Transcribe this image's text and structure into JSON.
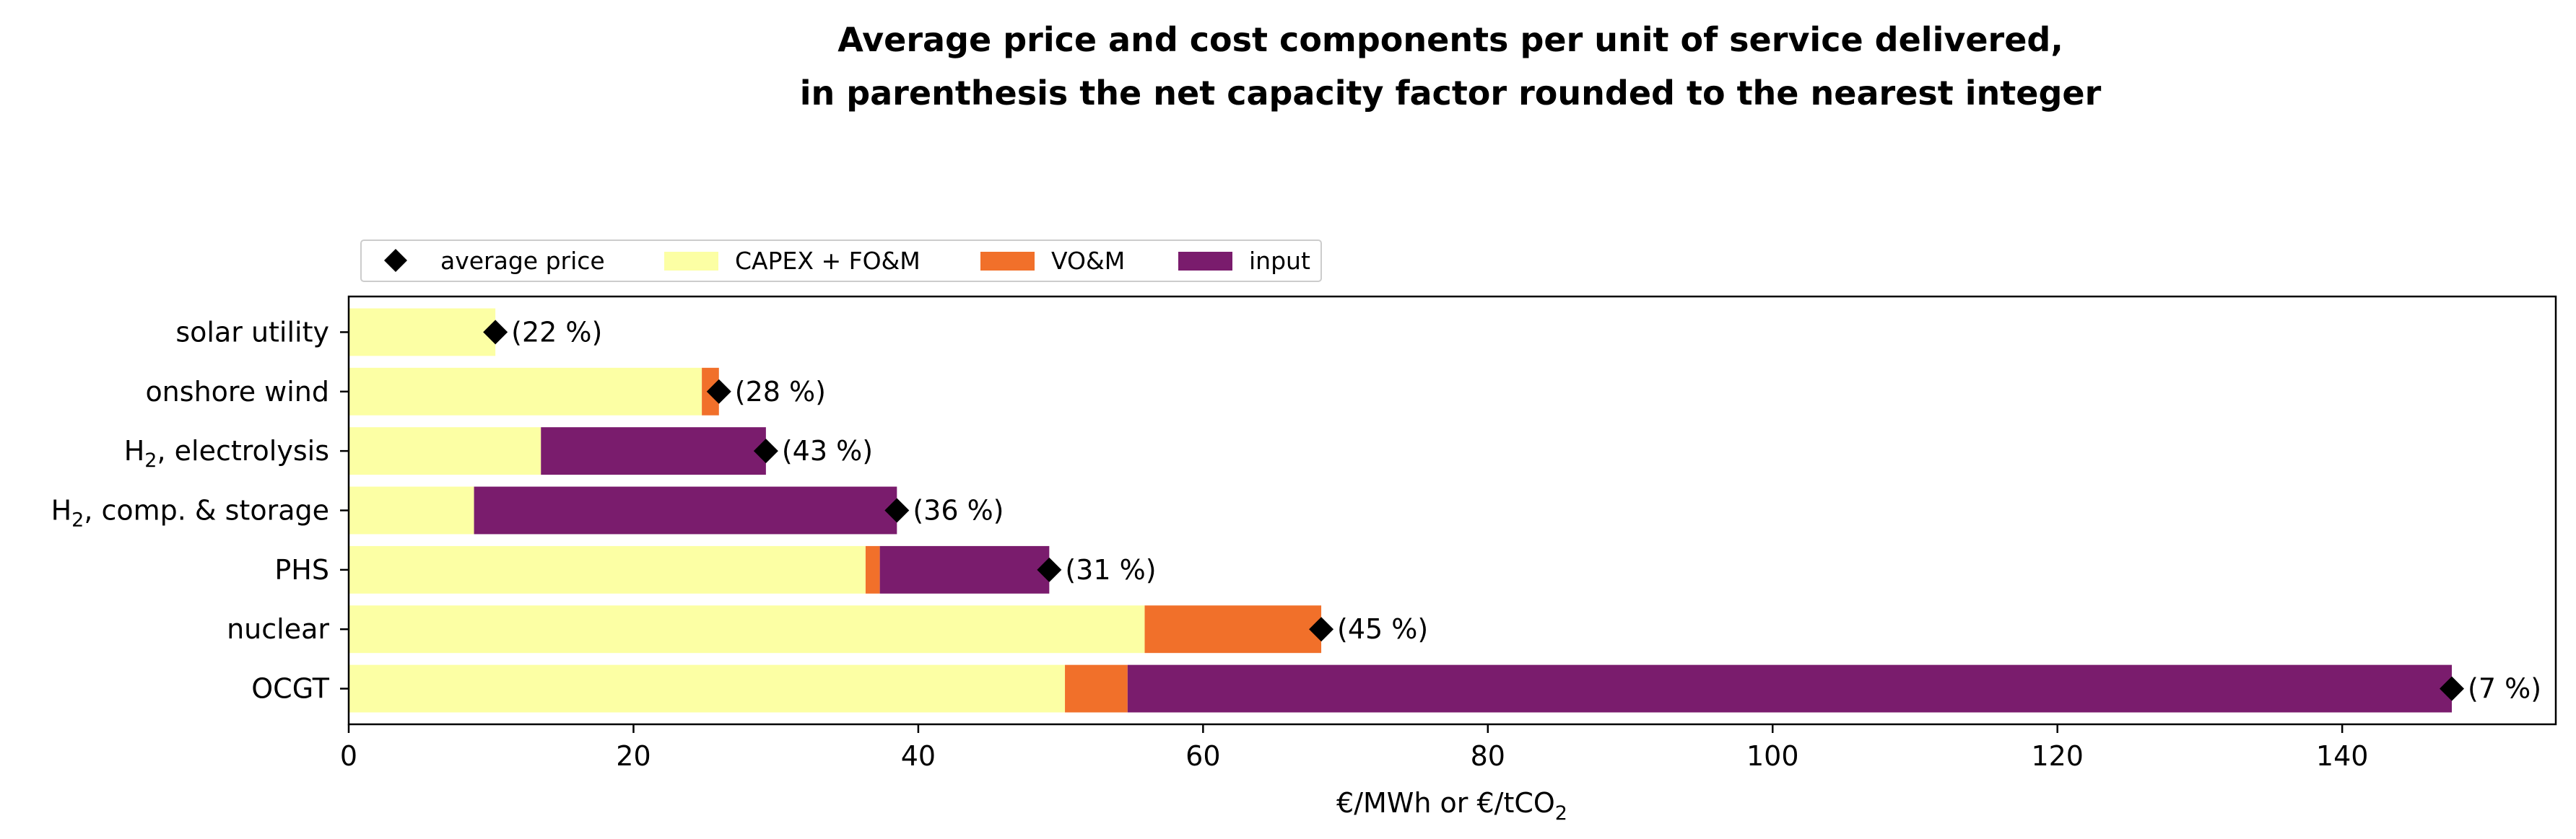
{
  "chart_data": {
    "type": "bar",
    "orientation": "horizontal",
    "stacked": true,
    "title_line1": "Average price and cost components per unit of service delivered,",
    "title_line2": "in parenthesis the net capacity factor rounded to the nearest integer",
    "xlabel": "€/MWh or €/tCO",
    "xlabel_sub": "2",
    "xlim": [
      0,
      155
    ],
    "xticks": [
      0,
      20,
      40,
      60,
      80,
      100,
      120,
      140
    ],
    "categories": [
      {
        "label": "solar utility",
        "sub": "",
        "suffix": ""
      },
      {
        "label": "onshore wind",
        "sub": "",
        "suffix": ""
      },
      {
        "label": "H",
        "sub": "2",
        "suffix": ", electrolysis"
      },
      {
        "label": "H",
        "sub": "2",
        "suffix": ", comp. & storage"
      },
      {
        "label": "PHS",
        "sub": "",
        "suffix": ""
      },
      {
        "label": "nuclear",
        "sub": "",
        "suffix": ""
      },
      {
        "label": "OCGT",
        "sub": "",
        "suffix": ""
      }
    ],
    "series": [
      {
        "name": "CAPEX + FO&M",
        "color": "#fcffa4",
        "values": [
          10.3,
          24.8,
          13.5,
          8.8,
          36.3,
          55.9,
          50.3
        ]
      },
      {
        "name": "VO&M",
        "color": "#f1702a",
        "values": [
          0.0,
          1.2,
          0.0,
          0.0,
          1.0,
          12.4,
          4.4
        ]
      },
      {
        "name": "input",
        "color": "#7a1c6d",
        "values": [
          0.0,
          0.0,
          15.8,
          29.7,
          11.9,
          0.0,
          93.0
        ]
      }
    ],
    "average_price": {
      "name": "average price",
      "color": "#000000",
      "values": [
        10.3,
        26.0,
        29.3,
        38.5,
        49.2,
        68.3,
        147.7
      ]
    },
    "annotations": [
      "(22 %)",
      "(28 %)",
      "(43 %)",
      "(36 %)",
      "(31 %)",
      "(45 %)",
      "(7 %)"
    ],
    "legend_position": "upper-left, above axes"
  }
}
